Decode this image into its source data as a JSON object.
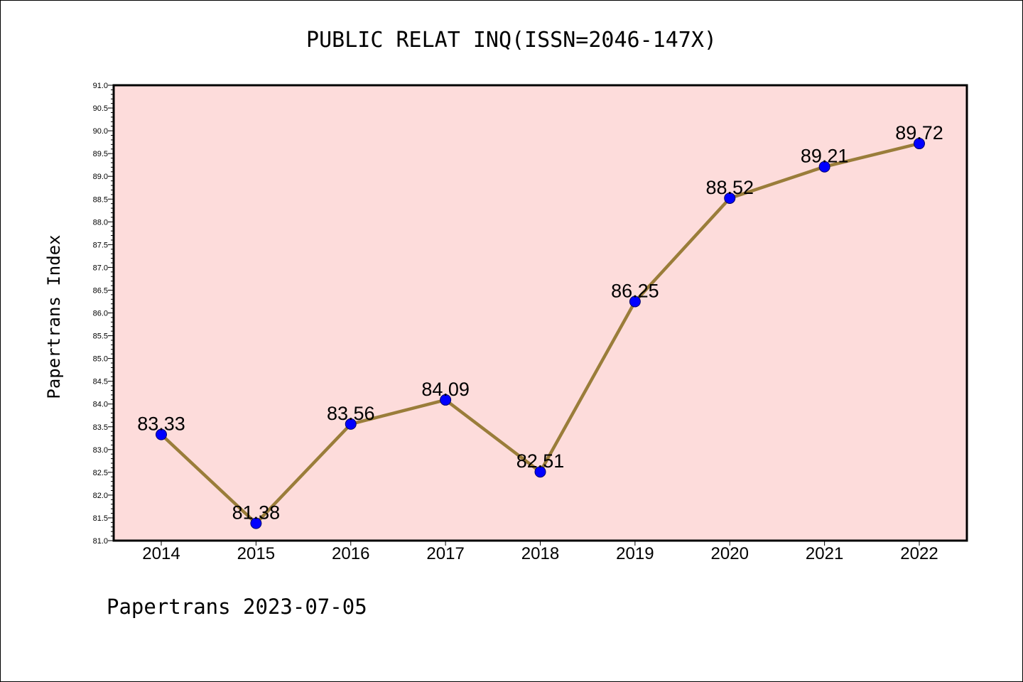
{
  "chart_data": {
    "type": "line",
    "title": "PUBLIC RELAT INQ(ISSN=2046-147X)",
    "xlabel": "",
    "ylabel": "Papertrans Index",
    "footer": "Papertrans 2023-07-05",
    "x": [
      "2014",
      "2015",
      "2016",
      "2017",
      "2018",
      "2019",
      "2020",
      "2021",
      "2022"
    ],
    "series": [
      {
        "values": [
          83.33,
          81.38,
          83.56,
          84.09,
          82.51,
          86.25,
          88.52,
          89.21,
          89.72
        ],
        "labels": [
          "83.33",
          "81.38",
          "83.56",
          "84.09",
          "82.51",
          "86.25",
          "88.52",
          "89.21",
          "89.72"
        ]
      }
    ],
    "yticks": [
      "81.0",
      "81.5",
      "82.0",
      "82.5",
      "83.0",
      "83.5",
      "84.0",
      "84.5",
      "85.0",
      "85.5",
      "86.0",
      "86.5",
      "87.0",
      "87.5",
      "88.0",
      "88.5",
      "89.0",
      "89.5",
      "90.0",
      "90.5",
      "91.0"
    ],
    "ylim": [
      81.0,
      91.0
    ],
    "grid": false,
    "colors": {
      "plot_background": "#fddcdb",
      "line": "#9a7d3a",
      "marker": "#0000ff"
    }
  }
}
